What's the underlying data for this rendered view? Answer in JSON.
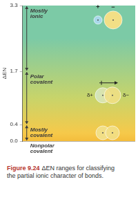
{
  "chart_data": {
    "type": "bar",
    "title": "Figure 9.24",
    "subtitle": "ΔEN ranges for classifying the partial ionic character of bonds.",
    "ylabel": "ΔEN",
    "categories": [
      null
    ],
    "series": [
      {
        "name": "Nonpolar covalent",
        "values": [
          [
            0,
            0
          ]
        ],
        "color": "#f4bd3c"
      },
      {
        "name": "Mostly covalent",
        "values": [
          [
            0,
            0.4
          ]
        ],
        "color": "#f6c94a"
      },
      {
        "name": "Polar covalent",
        "values": [
          [
            0.4,
            1.7
          ]
        ],
        "color": "#c8d46a",
        "charges": [
          "δ+",
          "δ−"
        ]
      },
      {
        "name": "Mostly ionic",
        "values": [
          [
            1.7,
            3.3
          ]
        ],
        "color": "#7ccaa6",
        "charges": [
          "+",
          "−"
        ]
      }
    ],
    "ylim": [
      0,
      3.3
    ],
    "yticks": [
      {
        "value": 0,
        "label": "0.0"
      },
      0.4,
      1.7,
      3.3
    ],
    "grid": true,
    "tick_labels": "y"
  }
}
